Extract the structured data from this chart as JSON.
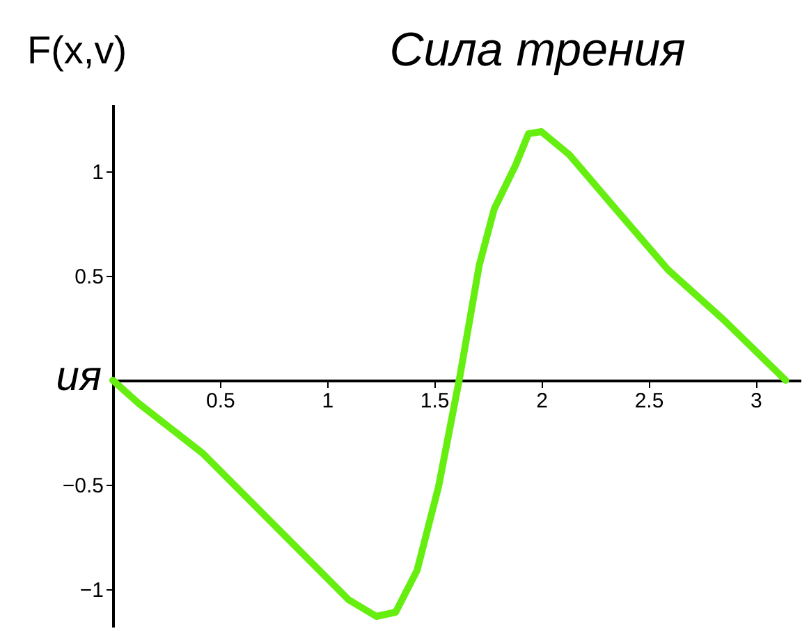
{
  "chart_data": {
    "type": "line",
    "title": "Сила трения",
    "ylabel": "F(x,v)",
    "annotations": [
      "ия"
    ],
    "x": [
      0,
      0.12,
      0.42,
      0.77,
      1.1,
      1.23,
      1.32,
      1.42,
      1.52,
      1.62,
      1.71,
      1.78,
      1.88,
      1.94,
      2.0,
      2.13,
      2.33,
      2.59,
      2.85,
      3.14
    ],
    "series": [
      {
        "color": "#66ee11",
        "values": [
          0,
          -0.11,
          -0.35,
          -0.71,
          -1.05,
          -1.13,
          -1.11,
          -0.91,
          -0.51,
          0.02,
          0.55,
          0.82,
          1.03,
          1.18,
          1.19,
          1.08,
          0.84,
          0.53,
          0.29,
          0
        ]
      }
    ],
    "xlim": [
      0,
      3.21
    ],
    "ylim": [
      -1.18,
      1.32
    ],
    "xticks": [
      0.5,
      1,
      1.5,
      2,
      2.5,
      3
    ],
    "yticks": [
      {
        "value": -1,
        "label": "−1"
      },
      {
        "value": -0.5,
        "label": "−0.5"
      },
      0.5,
      1
    ],
    "grid": false,
    "legend": false,
    "marker": "none",
    "line_style": "solid"
  }
}
